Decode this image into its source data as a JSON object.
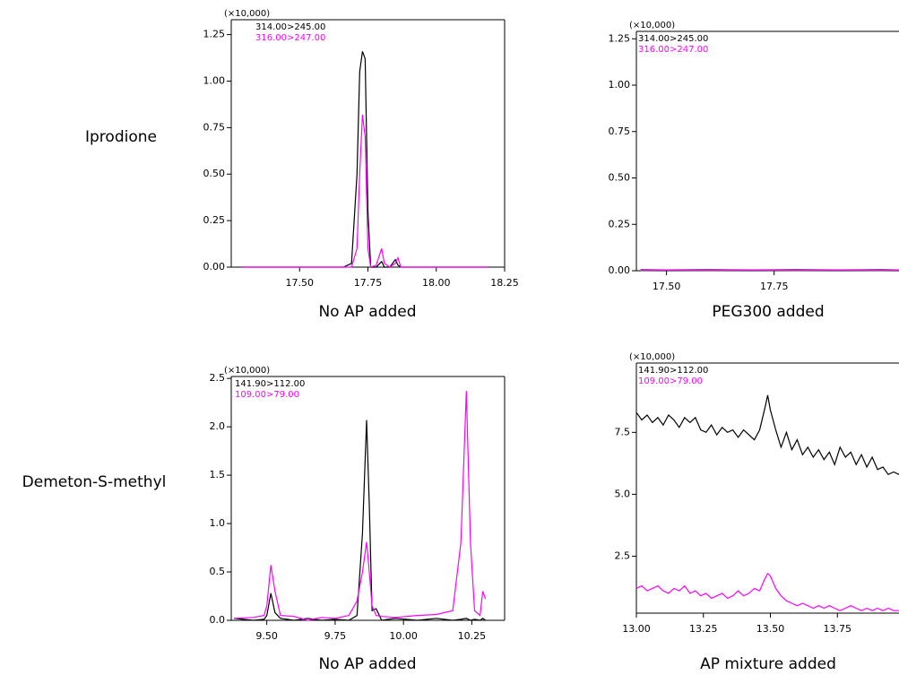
{
  "row_labels": [
    "Iprodione",
    "Demeton-S-methyl"
  ],
  "chart_data": [
    {
      "type": "line",
      "title": "No AP added",
      "y_multiplier": "(×10,000)",
      "x": [
        17.29,
        17.4,
        17.5,
        17.6,
        17.66,
        17.69,
        17.71,
        17.72,
        17.73,
        17.74,
        17.75,
        17.76,
        17.78,
        17.8,
        17.81,
        17.83,
        17.85,
        17.86,
        17.87,
        17.9,
        18.0,
        18.1,
        18.19
      ],
      "series": [
        {
          "name": "314.00>245.00",
          "color": "#000000",
          "values": [
            0,
            0,
            0,
            0,
            0,
            0.02,
            0.5,
            1.05,
            1.16,
            1.12,
            0.3,
            0,
            0,
            0.03,
            0,
            0,
            0.04,
            0.01,
            0,
            0,
            0,
            0,
            0
          ]
        },
        {
          "name": "316.00>247.00",
          "color": "#ff00ff",
          "values": [
            0,
            0,
            0,
            0,
            0,
            0,
            0.1,
            0.5,
            0.82,
            0.7,
            0.1,
            0,
            0.01,
            0.1,
            0.02,
            0,
            0.02,
            0.05,
            0,
            0,
            0,
            0,
            0
          ]
        }
      ],
      "xlim": [
        17.25,
        18.25
      ],
      "ylim": [
        0,
        1.33
      ],
      "xticks": [
        {
          "value": 17.5,
          "label": "17.50"
        },
        {
          "value": 17.75,
          "label": "17.75"
        },
        {
          "value": 18,
          "label": "18.00"
        },
        {
          "value": 18.25,
          "label": "18.25"
        }
      ],
      "yticks": [
        {
          "value": 0,
          "label": "0.00"
        },
        {
          "value": 0.25,
          "label": "0.25"
        },
        {
          "value": 0.5,
          "label": "0.50"
        },
        {
          "value": 0.75,
          "label": "0.75"
        },
        {
          "value": 1,
          "label": "1.00"
        },
        {
          "value": 1.25,
          "label": "1.25"
        }
      ]
    },
    {
      "type": "line",
      "title": "PEG300 added",
      "y_multiplier": "(×10,000)",
      "x": [
        17.44,
        17.5,
        17.6,
        17.7,
        17.8,
        17.9,
        18.0,
        18.04
      ],
      "series": [
        {
          "name": "314.00>245.00",
          "color": "#000000",
          "values": [
            0.005,
            0.004,
            0.005,
            0.004,
            0.005,
            0.004,
            0.005,
            0.004
          ]
        },
        {
          "name": "316.00>247.00",
          "color": "#ff00ff",
          "values": [
            0.002,
            0.003,
            0.002,
            0.003,
            0.002,
            0.003,
            0.002,
            0.003
          ]
        }
      ],
      "xlim": [
        17.43,
        18.04
      ],
      "ylim": [
        0,
        1.29
      ],
      "xticks": [
        {
          "value": 17.5,
          "label": "17.50"
        },
        {
          "value": 17.75,
          "label": "17.75"
        }
      ],
      "yticks": [
        {
          "value": 0,
          "label": "0.00"
        },
        {
          "value": 0.25,
          "label": "0.25"
        },
        {
          "value": 0.5,
          "label": "0.50"
        },
        {
          "value": 0.75,
          "label": "0.75"
        },
        {
          "value": 1,
          "label": "1.00"
        },
        {
          "value": 1.25,
          "label": "1.25"
        }
      ]
    },
    {
      "type": "line",
      "title": "No AP added",
      "y_multiplier": "(×10,000)",
      "x": [
        9.38,
        9.45,
        9.49,
        9.5,
        9.515,
        9.53,
        9.55,
        9.6,
        9.65,
        9.7,
        9.75,
        9.8,
        9.83,
        9.85,
        9.865,
        9.875,
        9.885,
        9.9,
        9.92,
        9.97,
        10.05,
        10.12,
        10.18,
        10.21,
        10.23,
        10.245,
        10.26,
        10.28,
        10.29,
        10.3
      ],
      "series": [
        {
          "name": "141.90>112.00",
          "color": "#000000",
          "values": [
            0.02,
            0,
            0.01,
            0.05,
            0.28,
            0.08,
            0.02,
            0,
            0.02,
            0,
            0.01,
            0,
            0.05,
            0.9,
            2.07,
            1.2,
            0.1,
            0.12,
            0,
            0.02,
            0,
            0.02,
            0,
            0.01,
            0.02,
            0,
            0.01,
            0,
            0.02,
            0
          ]
        },
        {
          "name": "109.00>79.00",
          "color": "#ff00ff",
          "values": [
            0.02,
            0.03,
            0.05,
            0.15,
            0.57,
            0.3,
            0.05,
            0.04,
            0,
            0.03,
            0.02,
            0.05,
            0.2,
            0.5,
            0.81,
            0.5,
            0.15,
            0.05,
            0.04,
            0.03,
            0.05,
            0.06,
            0.1,
            0.8,
            2.37,
            0.8,
            0.1,
            0.05,
            0.3,
            0.22
          ]
        }
      ],
      "xlim": [
        9.37,
        10.37
      ],
      "ylim": [
        0,
        2.52
      ],
      "xticks": [
        {
          "value": 9.5,
          "label": "9.50"
        },
        {
          "value": 9.75,
          "label": "9.75"
        },
        {
          "value": 10,
          "label": "10.00"
        },
        {
          "value": 10.25,
          "label": "10.25"
        }
      ],
      "yticks": [
        {
          "value": 0,
          "label": "0.0"
        },
        0.5,
        {
          "value": 1,
          "label": "1.0"
        },
        1.5,
        {
          "value": 2,
          "label": "2.0"
        },
        2.5
      ]
    },
    {
      "type": "line",
      "title": "AP mixture added",
      "y_multiplier": "(×10,000)",
      "x": [
        13.0,
        13.02,
        13.04,
        13.06,
        13.08,
        13.1,
        13.12,
        13.14,
        13.16,
        13.18,
        13.2,
        13.22,
        13.24,
        13.26,
        13.28,
        13.3,
        13.32,
        13.34,
        13.36,
        13.38,
        13.4,
        13.42,
        13.44,
        13.46,
        13.48,
        13.49,
        13.5,
        13.52,
        13.54,
        13.56,
        13.58,
        13.6,
        13.62,
        13.64,
        13.66,
        13.68,
        13.7,
        13.72,
        13.74,
        13.76,
        13.78,
        13.8,
        13.82,
        13.84,
        13.86,
        13.88,
        13.9,
        13.92,
        13.94,
        13.96,
        13.98
      ],
      "series": [
        {
          "name": "141.90>112.00",
          "color": "#000000",
          "values": [
            8.3,
            8.0,
            8.2,
            7.9,
            8.1,
            7.8,
            8.2,
            8.0,
            7.7,
            8.1,
            7.9,
            8.1,
            7.6,
            7.5,
            7.8,
            7.4,
            7.7,
            7.5,
            7.6,
            7.3,
            7.6,
            7.4,
            7.2,
            7.6,
            8.5,
            9.0,
            8.4,
            7.6,
            6.9,
            7.5,
            6.8,
            7.2,
            6.6,
            6.9,
            6.5,
            6.8,
            6.4,
            6.7,
            6.2,
            6.9,
            6.5,
            6.7,
            6.2,
            6.6,
            6.1,
            6.5,
            6.0,
            6.1,
            5.8,
            5.9,
            5.8
          ]
        },
        {
          "name": "109.00>79.00",
          "color": "#ff00ff",
          "values": [
            1.2,
            1.3,
            1.1,
            1.2,
            1.3,
            1.1,
            1.0,
            1.2,
            1.1,
            1.3,
            1.0,
            1.1,
            0.9,
            1.0,
            0.8,
            0.9,
            1.0,
            0.8,
            0.9,
            1.1,
            0.9,
            1.0,
            1.2,
            1.1,
            1.6,
            1.8,
            1.7,
            1.2,
            0.9,
            0.7,
            0.6,
            0.5,
            0.6,
            0.5,
            0.4,
            0.5,
            0.4,
            0.5,
            0.4,
            0.3,
            0.4,
            0.5,
            0.4,
            0.3,
            0.4,
            0.3,
            0.4,
            0.3,
            0.4,
            0.3,
            0.3
          ]
        }
      ],
      "xlim": [
        13.0,
        13.98
      ],
      "ylim": [
        0.2,
        10.3
      ],
      "xticks": [
        {
          "value": 13,
          "label": "13.00"
        },
        {
          "value": 13.25,
          "label": "13.25"
        },
        {
          "value": 13.5,
          "label": "13.50"
        },
        {
          "value": 13.75,
          "label": "13.75"
        }
      ],
      "yticks": [
        2.5,
        {
          "value": 5,
          "label": "5.0"
        },
        7.5
      ]
    }
  ]
}
